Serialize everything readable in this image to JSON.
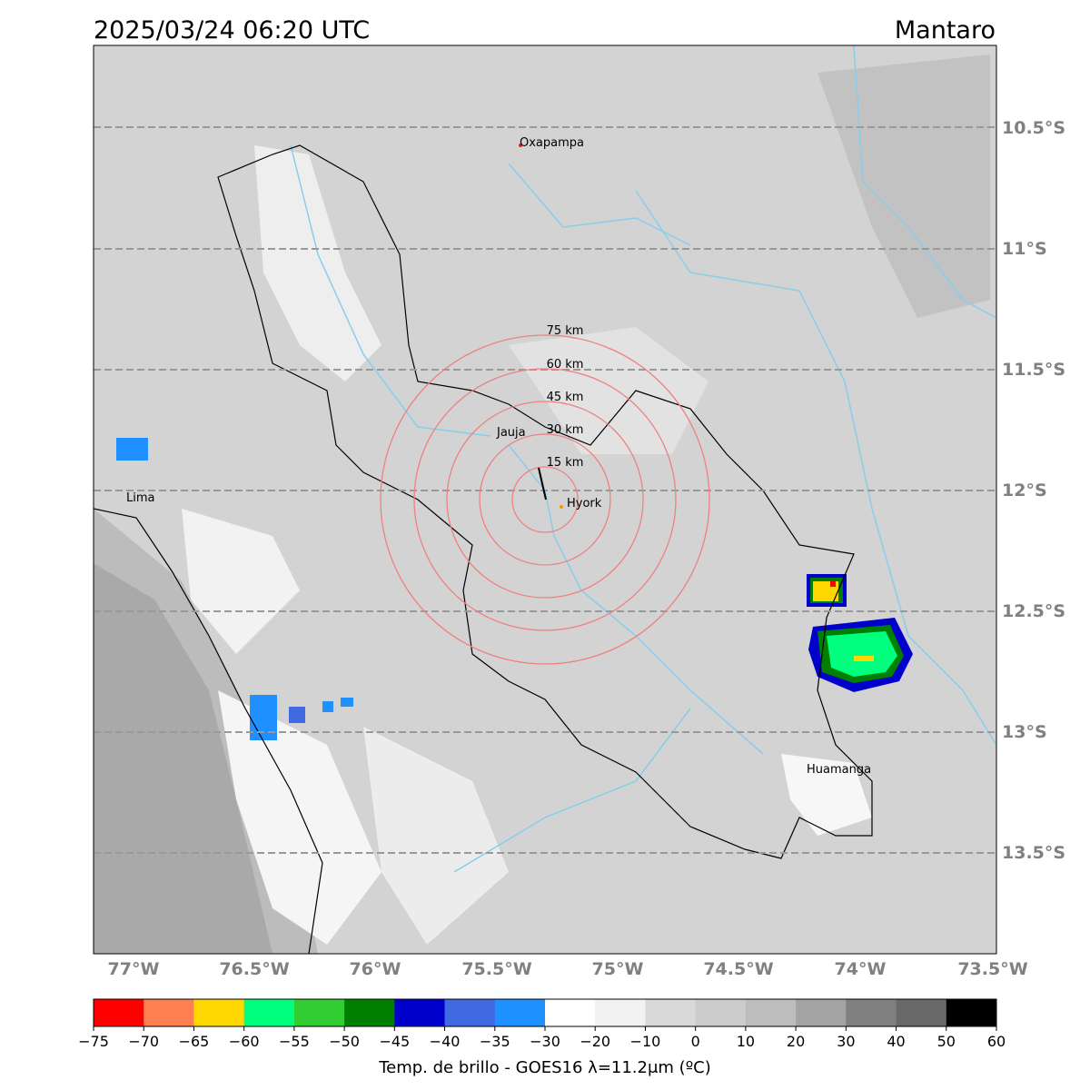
{
  "header": {
    "datetime": "2025/03/24 06:20 UTC",
    "region": "Mantaro"
  },
  "map": {
    "lat_labels": [
      "10.5°S",
      "11°S",
      "11.5°S",
      "12°S",
      "12.5°S",
      "13°S",
      "13.5°S"
    ],
    "lon_labels": [
      "77°W",
      "76.5°W",
      "76°W",
      "75.5°W",
      "75°W",
      "74.5°W",
      "74°W",
      "73.5°W"
    ],
    "rings": [
      "15 km",
      "30 km",
      "45 km",
      "60 km",
      "75 km"
    ],
    "cities": [
      "Oxapampa",
      "Jauja",
      "Lima",
      "Hyork",
      "Huamanga"
    ]
  },
  "colorbar": {
    "colors": [
      "#ff0000",
      "#ff7f50",
      "#ffd700",
      "#00ff7f",
      "#32cd32",
      "#008000",
      "#0000cd",
      "#4169e1",
      "#1e90ff",
      "#ffffff",
      "#f2f2f2",
      "#d9d9d9",
      "#cccccc",
      "#bdbdbd",
      "#a3a3a3",
      "#808080",
      "#696969",
      "#000000"
    ],
    "ticks": [
      "−75",
      "−70",
      "−65",
      "−60",
      "−55",
      "−50",
      "−45",
      "−40",
      "−35",
      "−30",
      "−20",
      "−10",
      "0",
      "10",
      "20",
      "30",
      "40",
      "50",
      "60"
    ],
    "label": "Temp. de brillo - GOES16 λ=11.2μm (ºC)"
  }
}
